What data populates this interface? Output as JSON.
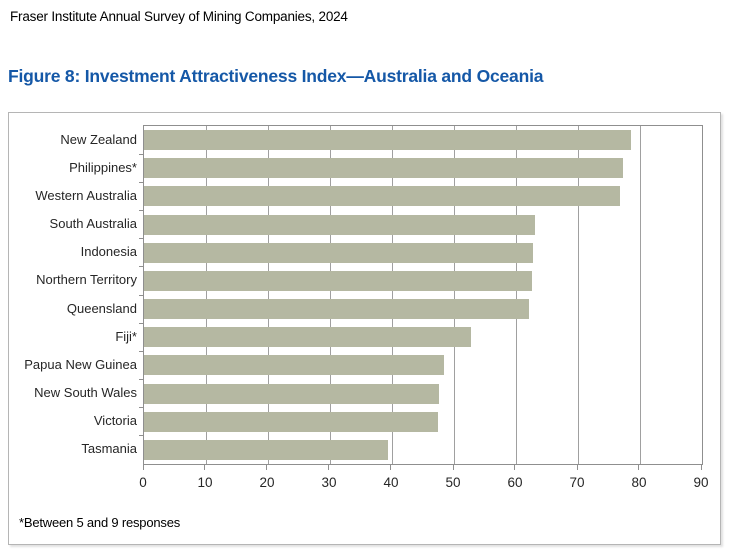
{
  "header": {
    "source_line": "Fraser Institute Annual Survey of Mining Companies, 2024"
  },
  "figure": {
    "title": "Figure 8: Investment Attractiveness Index—Australia and Oceania"
  },
  "footnote": "*Between 5 and 9 responses",
  "colors": {
    "title_blue": "#1558a7",
    "bar_fill": "#b5b8a2",
    "grid_line": "#a0a0a0",
    "plot_border": "#8f8f8f",
    "box_border": "#b5b5b5",
    "label_text": "#262626"
  },
  "chart_data": {
    "type": "bar",
    "orientation": "horizontal",
    "title": "Figure 8: Investment Attractiveness Index—Australia and Oceania",
    "categories": [
      "New Zealand",
      "Philippines*",
      "Western Australia",
      "South Australia",
      "Indonesia",
      "Northern Territory",
      "Queensland",
      "Fiji*",
      "Papua New Guinea",
      "New South Wales",
      "Victoria",
      "Tasmania"
    ],
    "values": [
      78.5,
      77.2,
      76.8,
      63.0,
      62.7,
      62.5,
      62.1,
      52.8,
      48.4,
      47.6,
      47.4,
      39.3
    ],
    "xlabel": "",
    "ylabel": "",
    "xlim": [
      0,
      90
    ],
    "xticks": [
      0,
      10,
      20,
      30,
      40,
      50,
      60,
      70,
      80,
      90
    ],
    "grid": true,
    "legend": false,
    "footnote": "*Between 5 and 9 responses"
  }
}
